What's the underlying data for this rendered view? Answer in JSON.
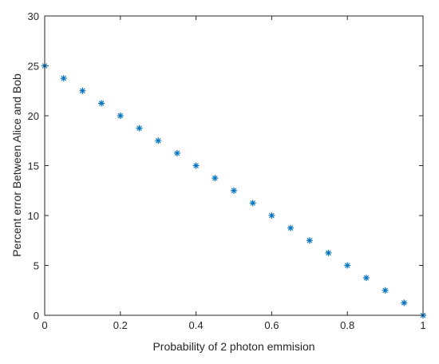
{
  "chart_data": {
    "type": "scatter",
    "title": "",
    "xlabel": "Probability of 2 photon emmision",
    "ylabel": "Percent error Between Alice and Bob",
    "xlim": [
      0,
      1
    ],
    "ylim": [
      0,
      30
    ],
    "xticks": [
      0,
      0.2,
      0.4,
      0.6,
      0.8,
      1
    ],
    "xtick_labels": [
      "0",
      "0.2",
      "0.4",
      "0.6",
      "0.8",
      "1"
    ],
    "yticks": [
      0,
      5,
      10,
      15,
      20,
      25,
      30
    ],
    "ytick_labels": [
      "0",
      "5",
      "10",
      "15",
      "20",
      "25",
      "30"
    ],
    "grid": false,
    "marker": "asterisk",
    "color": "#0072BD",
    "series": [
      {
        "x": [
          0,
          0.05,
          0.1,
          0.15,
          0.2,
          0.25,
          0.3,
          0.35,
          0.4,
          0.45,
          0.5,
          0.55,
          0.6,
          0.65,
          0.7,
          0.75,
          0.8,
          0.85,
          0.9,
          0.95,
          1
        ],
        "y": [
          25,
          23.75,
          22.5,
          21.25,
          20,
          18.75,
          17.5,
          16.25,
          15,
          13.75,
          12.5,
          11.25,
          10,
          8.75,
          7.5,
          6.25,
          5,
          3.75,
          2.5,
          1.25,
          0
        ]
      }
    ]
  }
}
